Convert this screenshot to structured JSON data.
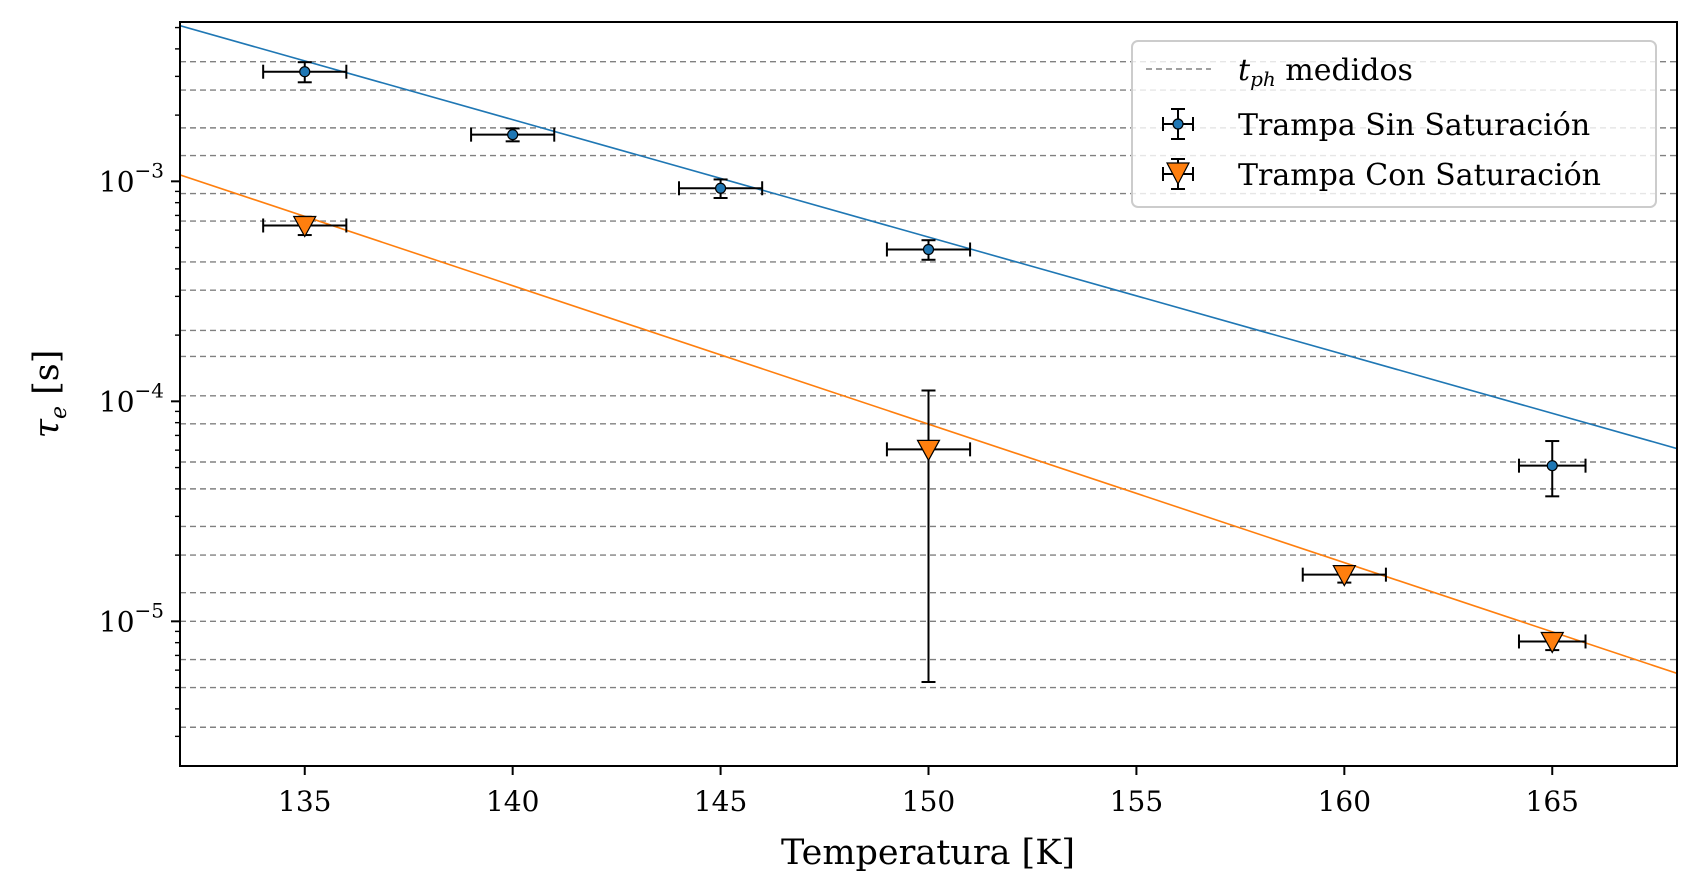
{
  "chart_data": {
    "type": "scatter",
    "xlabel": "Temperatura [K]",
    "ylabel": "τ",
    "ylabel_sub": "e",
    "ylabel_unit": " [s]",
    "xlim": [
      132,
      168
    ],
    "ylim": [
      2.2e-06,
      0.0053
    ],
    "yscale": "log",
    "x_ticks": [
      135,
      140,
      145,
      150,
      155,
      160,
      165
    ],
    "y_ticks": [
      {
        "value": 1e-05,
        "base": "10",
        "exp": "−5"
      },
      {
        "value": 0.0001,
        "base": "10",
        "exp": "−4"
      },
      {
        "value": 0.001,
        "base": "10",
        "exp": "−3"
      }
    ],
    "hlines": {
      "name_main": "t",
      "name_sub": "ph",
      "name_rest": " medidos",
      "color": "#808080",
      "values": [
        0.0035,
        0.0026,
        0.00175,
        0.00131,
        0.00088,
        0.00066,
        0.00043,
        0.00032,
        0.00021,
        0.00016,
        0.000106,
        7.9e-05,
        5.3e-05,
        4e-05,
        2.7e-05,
        2e-05,
        1.35e-05,
        1e-05,
        6.7e-06,
        5e-06,
        3.3e-06
      ]
    },
    "series": [
      {
        "name": "Trampa Sin Saturación",
        "color": "#1f77b4",
        "marker": "circle",
        "x": [
          135,
          140,
          145,
          150,
          165
        ],
        "y": [
          0.00315,
          0.00163,
          0.00093,
          0.00049,
          5.1e-05
        ],
        "xerr": [
          1,
          1,
          1,
          1,
          0.8
        ],
        "yerr_low": [
          0.00033,
          0.00011,
          9e-05,
          5e-05,
          1.4e-05
        ],
        "yerr_high": [
          0.00033,
          0.00011,
          9e-05,
          5e-05,
          1.5e-05
        ],
        "fit": {
          "x": [
            132,
            168
          ],
          "y": [
            0.0051,
            6.1e-05
          ]
        }
      },
      {
        "name": "Trampa Con Saturación",
        "color": "#ff7f0e",
        "marker": "triangle-down",
        "x": [
          135,
          150,
          160,
          165
        ],
        "y": [
          0.00063,
          6.05e-05,
          1.63e-05,
          8.1e-06
        ],
        "xerr": [
          1,
          1,
          1,
          0.8
        ],
        "yerr_low": [
          6e-05,
          5.52e-05,
          1.3e-06,
          7e-07
        ],
        "yerr_high": [
          6e-05,
          5.15e-05,
          1.3e-06,
          7e-07
        ],
        "fit": {
          "x": [
            132,
            168
          ],
          "y": [
            0.00107,
            5.8e-06
          ]
        }
      }
    ],
    "legend": "top-right",
    "grid": false
  }
}
